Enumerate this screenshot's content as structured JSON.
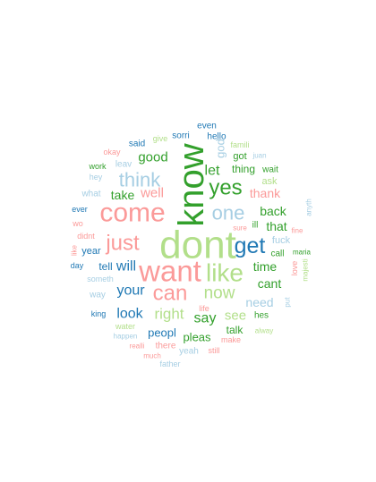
{
  "palette": {
    "dark_green": "#33a02c",
    "light_green": "#b2df8a",
    "dark_blue": "#1f78b4",
    "light_blue": "#a6cee3",
    "salmon": "#fb9a99",
    "red": "#e31a1c"
  },
  "words": [
    {
      "text": "dont",
      "color": "light_green"
    },
    {
      "text": "know",
      "color": "dark_green"
    },
    {
      "text": "want",
      "color": "salmon"
    },
    {
      "text": "come",
      "color": "salmon"
    },
    {
      "text": "like",
      "color": "light_green"
    },
    {
      "text": "get",
      "color": "dark_blue"
    },
    {
      "text": "just",
      "color": "salmon"
    },
    {
      "text": "can",
      "color": "salmon"
    },
    {
      "text": "yes",
      "color": "dark_green"
    },
    {
      "text": "one",
      "color": "light_blue"
    },
    {
      "text": "think",
      "color": "light_blue"
    },
    {
      "text": "now",
      "color": "light_green"
    },
    {
      "text": "right",
      "color": "light_green"
    },
    {
      "text": "your",
      "color": "dark_blue"
    },
    {
      "text": "will",
      "color": "dark_blue"
    },
    {
      "text": "look",
      "color": "dark_blue"
    },
    {
      "text": "say",
      "color": "dark_green"
    },
    {
      "text": "see",
      "color": "light_green"
    },
    {
      "text": "let",
      "color": "dark_green"
    },
    {
      "text": "good",
      "color": "dark_green"
    },
    {
      "text": "well",
      "color": "salmon"
    },
    {
      "text": "take",
      "color": "dark_green"
    },
    {
      "text": "back",
      "color": "dark_green"
    },
    {
      "text": "thank",
      "color": "salmon"
    },
    {
      "text": "that",
      "color": "dark_green"
    },
    {
      "text": "time",
      "color": "dark_green"
    },
    {
      "text": "cant",
      "color": "dark_green"
    },
    {
      "text": "need",
      "color": "light_blue"
    },
    {
      "text": "thing",
      "color": "dark_green"
    },
    {
      "text": "peopl",
      "color": "dark_blue"
    },
    {
      "text": "pleas",
      "color": "dark_green"
    },
    {
      "text": "tell",
      "color": "dark_blue"
    },
    {
      "text": "year",
      "color": "dark_blue"
    },
    {
      "text": "talk",
      "color": "dark_green"
    },
    {
      "text": "fuck",
      "color": "light_blue"
    },
    {
      "text": "call",
      "color": "dark_green"
    },
    {
      "text": "ask",
      "color": "light_green"
    },
    {
      "text": "wait",
      "color": "dark_green"
    },
    {
      "text": "got",
      "color": "dark_green"
    },
    {
      "text": "famili",
      "color": "light_green"
    },
    {
      "text": "god",
      "color": "light_blue"
    },
    {
      "text": "even",
      "color": "dark_blue"
    },
    {
      "text": "hello",
      "color": "dark_blue"
    },
    {
      "text": "sorri",
      "color": "dark_blue"
    },
    {
      "text": "give",
      "color": "light_green"
    },
    {
      "text": "said",
      "color": "dark_blue"
    },
    {
      "text": "okay",
      "color": "salmon"
    },
    {
      "text": "leav",
      "color": "light_blue"
    },
    {
      "text": "work",
      "color": "dark_green"
    },
    {
      "text": "hey",
      "color": "light_blue"
    },
    {
      "text": "what",
      "color": "light_blue"
    },
    {
      "text": "ever",
      "color": "dark_blue"
    },
    {
      "text": "wo",
      "color": "salmon"
    },
    {
      "text": "didnt",
      "color": "salmon"
    },
    {
      "text": "like",
      "color": "salmon"
    },
    {
      "text": "day",
      "color": "dark_blue"
    },
    {
      "text": "someth",
      "color": "light_blue"
    },
    {
      "text": "way",
      "color": "light_blue"
    },
    {
      "text": "king",
      "color": "dark_blue"
    },
    {
      "text": "water",
      "color": "light_green"
    },
    {
      "text": "happen",
      "color": "light_blue"
    },
    {
      "text": "realli",
      "color": "salmon"
    },
    {
      "text": "there",
      "color": "salmon"
    },
    {
      "text": "much",
      "color": "salmon"
    },
    {
      "text": "father",
      "color": "light_blue"
    },
    {
      "text": "yeah",
      "color": "light_blue"
    },
    {
      "text": "still",
      "color": "salmon"
    },
    {
      "text": "make",
      "color": "salmon"
    },
    {
      "text": "alway",
      "color": "light_green"
    },
    {
      "text": "life",
      "color": "salmon"
    },
    {
      "text": "hes",
      "color": "dark_green"
    },
    {
      "text": "put",
      "color": "light_blue"
    },
    {
      "text": "majesti",
      "color": "light_green"
    },
    {
      "text": "love",
      "color": "salmon"
    },
    {
      "text": "maria",
      "color": "dark_green"
    },
    {
      "text": "fine",
      "color": "salmon"
    },
    {
      "text": "anyth",
      "color": "light_blue"
    },
    {
      "text": "ill",
      "color": "dark_green"
    },
    {
      "text": "sure",
      "color": "salmon"
    },
    {
      "text": "juan",
      "color": "light_blue"
    }
  ]
}
